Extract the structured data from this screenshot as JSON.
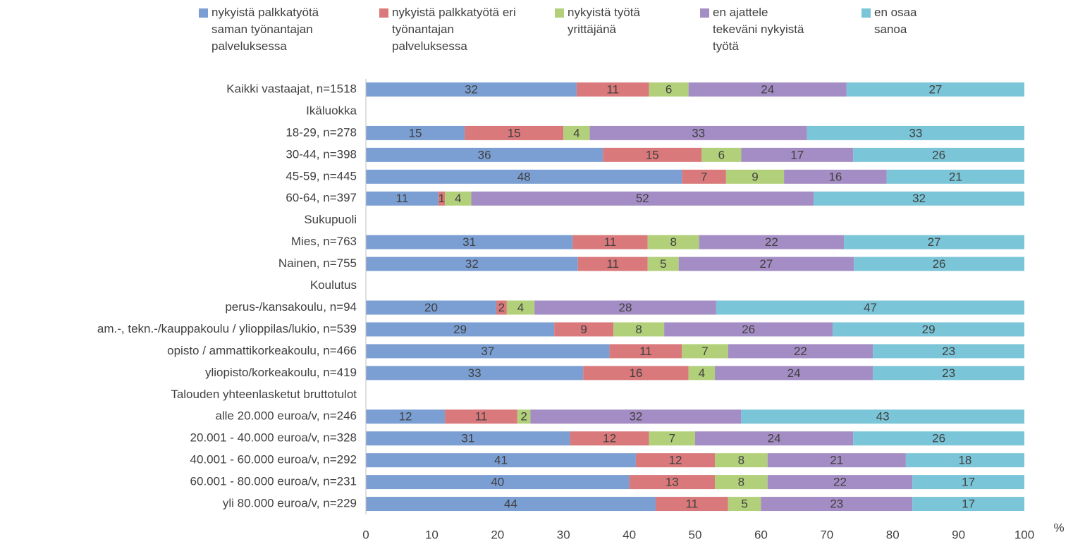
{
  "chart_data": {
    "type": "stacked_barh",
    "xlabel": "%",
    "categories": [
      "Kaikki vastaajat, n=1518",
      "Ikäluokka",
      "18-29, n=278",
      "30-44, n=398",
      "45-59, n=445",
      "60-64, n=397",
      "Sukupuoli",
      "Mies, n=763",
      "Nainen, n=755",
      "Koulutus",
      "perus-/kansakoulu, n=94",
      "am.-, tekn.-/kauppakoulu / ylioppilas/lukio, n=539",
      "opisto / ammattikorkeakoulu, n=466",
      "yliopisto/korkeakoulu, n=419",
      "Talouden yhteenlasketut bruttotulot",
      "alle 20.000 euroa/v, n=246",
      "20.001 - 40.000 euroa/v, n=328",
      "40.001 - 60.000 euroa/v, n=292",
      "60.001 - 80.000 euroa/v, n=231",
      "yli 80.000 euroa/v, n=229"
    ],
    "series": [
      {
        "name": "nykyistä palkkatyötä saman työnantajan palveluksessa",
        "color": "#7b9fd3",
        "values": [
          32,
          null,
          15,
          36,
          48,
          11,
          null,
          31.4,
          32.2,
          null,
          19.8,
          28.6,
          37,
          33,
          null,
          12,
          31,
          41,
          40,
          44
        ],
        "value_labels": [
          "32",
          null,
          "15",
          "36",
          "48",
          "11",
          null,
          "31",
          "32",
          null,
          "20",
          "29",
          "37",
          "33",
          null,
          "12",
          "31",
          "41",
          "40",
          "44"
        ]
      },
      {
        "name": "nykyistä palkkatyötä eri työnantajan palveluksessa",
        "color": "#d9797b",
        "values": [
          11,
          null,
          15,
          15,
          6.7,
          1,
          null,
          11.4,
          10.6,
          null,
          1.6,
          9.0,
          11,
          16,
          null,
          11,
          12,
          12,
          13,
          11
        ],
        "value_labels": [
          "11",
          null,
          "15",
          "15",
          "7",
          "1",
          null,
          "11",
          "11",
          null,
          "2",
          "9",
          "11",
          "16",
          null,
          "11",
          "12",
          "12",
          "13",
          "11"
        ]
      },
      {
        "name": "nykyistä työtä yrittäjänä",
        "color": "#b2d07a",
        "values": [
          6,
          null,
          4,
          6,
          8.8,
          4,
          null,
          7.8,
          4.7,
          null,
          4.2,
          7.7,
          7,
          4,
          null,
          2,
          7,
          8,
          8,
          5
        ],
        "value_labels": [
          "6",
          null,
          "4",
          "6",
          "9",
          "4",
          null,
          "8",
          "5",
          null,
          "4",
          "8",
          "7",
          "4",
          null,
          "2",
          "7",
          "8",
          "8",
          "5"
        ]
      },
      {
        "name": "en ajattele tekeväni nykyistä työtä",
        "color": "#a48dc4",
        "values": [
          24,
          null,
          33,
          17,
          15.6,
          52,
          null,
          22.0,
          26.6,
          null,
          27.6,
          25.6,
          22,
          24,
          null,
          32,
          24,
          21,
          22,
          23
        ],
        "value_labels": [
          "24",
          null,
          "33",
          "17",
          "16",
          "52",
          null,
          "22",
          "27",
          null,
          "28",
          "26",
          "22",
          "24",
          null,
          "32",
          "24",
          "21",
          "22",
          "23"
        ]
      },
      {
        "name": "en osaa sanoa",
        "color": "#7bc5d8",
        "values": [
          27,
          null,
          33,
          26,
          20.9,
          32,
          null,
          27.4,
          25.9,
          null,
          46.8,
          29.1,
          23,
          23,
          null,
          43,
          26,
          18,
          17,
          17
        ],
        "value_labels": [
          "27",
          null,
          "33",
          "26",
          "21",
          "32",
          null,
          "27",
          "26",
          null,
          "47",
          "29",
          "23",
          "23",
          null,
          "43",
          "26",
          "18",
          "17",
          "17"
        ]
      }
    ],
    "xlim": [
      0,
      100
    ],
    "xticks": [
      0,
      10,
      20,
      30,
      40,
      50,
      60,
      70,
      80,
      90,
      100
    ],
    "grid": false,
    "legend": "top"
  }
}
